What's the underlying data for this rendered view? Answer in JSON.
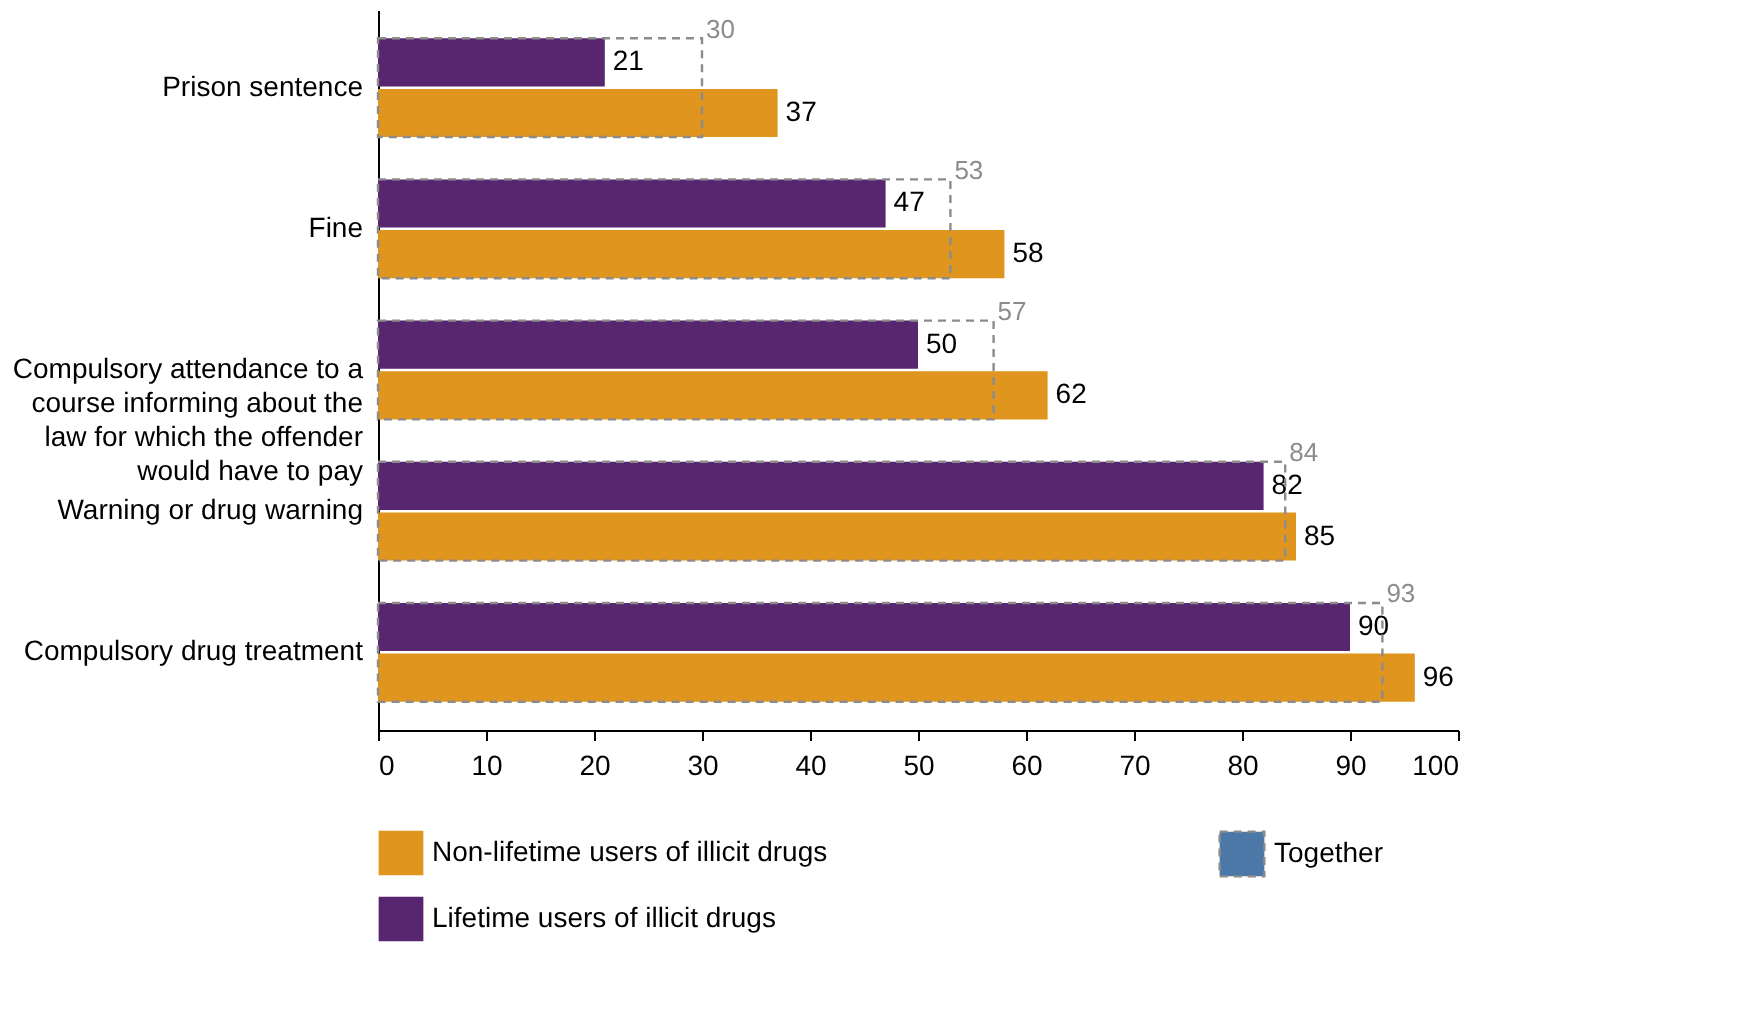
{
  "chart_data": {
    "type": "bar",
    "orientation": "horizontal",
    "categories": [
      "Prison sentence",
      "Fine",
      "Compulsory attendance to a course informing about the law for which the offender would have to pay",
      "Warning or drug warning",
      "Compulsory drug treatment"
    ],
    "series": [
      {
        "name": "Lifetime users of illicit drugs",
        "color": "#57266f",
        "values": [
          21,
          47,
          50,
          82,
          90
        ]
      },
      {
        "name": "Non-lifetime users of illicit drugs",
        "color": "#e0951f",
        "values": [
          37,
          58,
          62,
          85,
          96
        ]
      },
      {
        "name": "Together",
        "color": "#8c8c8c",
        "line_style": "dashed",
        "values": [
          30,
          53,
          57,
          84,
          93
        ]
      }
    ],
    "xlim": [
      0,
      100
    ],
    "xticks": [
      0,
      10,
      20,
      30,
      40,
      50,
      60,
      70,
      80,
      90,
      100
    ],
    "data_labels": true,
    "legend": "bottom"
  }
}
